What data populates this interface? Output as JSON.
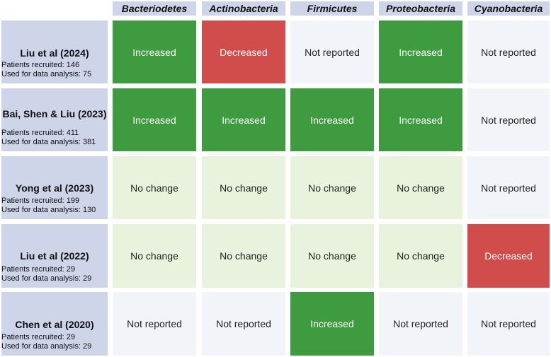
{
  "columns": [
    "Bacteriodetes",
    "Actinobacteria",
    "Firmicutes",
    "Proteobacteria",
    "Cyanobacteria"
  ],
  "rows": [
    {
      "study": "Liu et al (2024)",
      "recruited": "Patients recruited: 146",
      "analysed": "Used for data analysis: 75",
      "cells": [
        "Increased",
        "Decreased",
        "Not reported",
        "Increased",
        "Not reported"
      ]
    },
    {
      "study": "Bai, Shen & Liu (2023)",
      "recruited": "Patients recruited: 411",
      "analysed": "Used for data analysis: 381",
      "cells": [
        "Increased",
        "Increased",
        "Increased",
        "Increased",
        "Not reported"
      ]
    },
    {
      "study": "Yong et al (2023)",
      "recruited": "Patients recruited: 199",
      "analysed": "Used for data analysis: 130",
      "cells": [
        "No change",
        "No change",
        "No change",
        "No change",
        "Not reported"
      ]
    },
    {
      "study": "Liu et al (2022)",
      "recruited": "Patients recruited: 29",
      "analysed": "Used for data analysis: 29",
      "cells": [
        "No change",
        "No change",
        "No change",
        "No change",
        "Decreased"
      ]
    },
    {
      "study": "Chen et al (2020)",
      "recruited": "Patients recruited: 29",
      "analysed": "Used for data analysis: 29",
      "cells": [
        "Not reported",
        "Not reported",
        "Increased",
        "Not reported",
        "Not reported"
      ]
    }
  ],
  "colors": {
    "Increased": "#3f9b3f",
    "Decreased": "#d04d4c",
    "No change": "#e8f2dc",
    "Not reported": "#f1f4f9",
    "label_bg": "#cfd5e8"
  }
}
